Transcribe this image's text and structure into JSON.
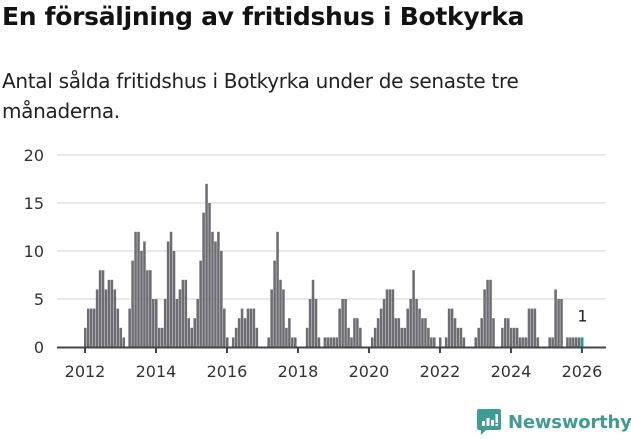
{
  "header": {
    "title": "En försäljning av fritidshus i Botkyrka",
    "subtitle": "Antal sålda fritidshus i Botkyrka under de senaste tre månaderna."
  },
  "brand": {
    "name": "Newsworthy",
    "color": "#3f9c93"
  },
  "colors": {
    "bar": "#6e6d72",
    "highlight": "#1aa595",
    "grid": "#e2e2e2",
    "axis": "#444444",
    "text": "#333333"
  },
  "chart_data": {
    "type": "bar",
    "title": "En försäljning av fritidshus i Botkyrka",
    "subtitle": "Antal sålda fritidshus i Botkyrka under de senaste tre månaderna.",
    "xlabel": "",
    "ylabel": "",
    "ylim": [
      0,
      20
    ],
    "yticks": [
      0,
      5,
      10,
      15,
      20
    ],
    "xticks": [
      "2012",
      "2014",
      "2016",
      "2018",
      "2020",
      "2022",
      "2024",
      "2026"
    ],
    "grid": true,
    "start": "2012-01",
    "frequency": "monthly",
    "annotation": {
      "label": "1",
      "index": "last"
    },
    "values": [
      2,
      4,
      4,
      4,
      6,
      8,
      8,
      6,
      7,
      7,
      6,
      4,
      2,
      1,
      0,
      4,
      9,
      12,
      12,
      10,
      11,
      8,
      8,
      5,
      5,
      2,
      2,
      5,
      11,
      12,
      10,
      5,
      6,
      7,
      7,
      3,
      2,
      3,
      5,
      9,
      14,
      17,
      15,
      12,
      11,
      12,
      10,
      4,
      1,
      0,
      1,
      2,
      3,
      4,
      3,
      4,
      4,
      4,
      2,
      0,
      0,
      0,
      1,
      6,
      9,
      12,
      7,
      6,
      2,
      3,
      1,
      1,
      0,
      0,
      0,
      2,
      5,
      7,
      5,
      1,
      0,
      1,
      1,
      1,
      1,
      1,
      4,
      5,
      5,
      2,
      1,
      3,
      3,
      2,
      0,
      0,
      0,
      1,
      2,
      3,
      4,
      5,
      6,
      6,
      6,
      3,
      3,
      2,
      2,
      4,
      5,
      8,
      5,
      4,
      3,
      3,
      2,
      1,
      1,
      0,
      1,
      0,
      1,
      4,
      4,
      3,
      2,
      2,
      1,
      0,
      0,
      0,
      1,
      2,
      3,
      6,
      7,
      7,
      3,
      0,
      0,
      2,
      3,
      3,
      2,
      2,
      2,
      1,
      1,
      1,
      4,
      4,
      4,
      1,
      0,
      0,
      0,
      1,
      1,
      6,
      5,
      5,
      0,
      1,
      1,
      1,
      1,
      1,
      1
    ]
  }
}
